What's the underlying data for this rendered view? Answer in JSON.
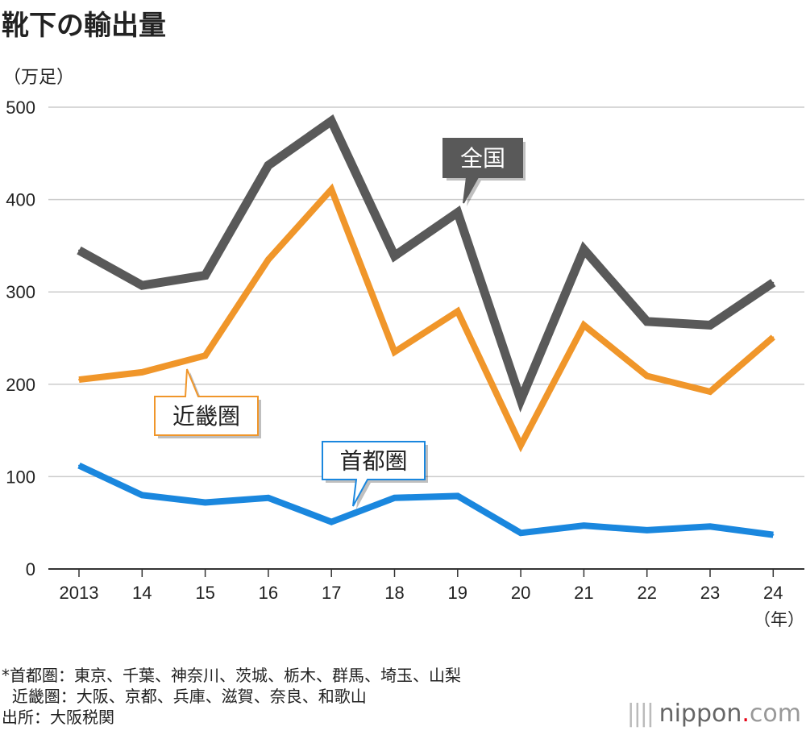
{
  "title": "靴下の輸出量",
  "unit": "（万足）",
  "chart_data": {
    "type": "line",
    "title": "靴下の輸出量",
    "ylabel": "（万足）",
    "xlabel": "（年）",
    "categories": [
      "2013",
      "14",
      "15",
      "16",
      "17",
      "18",
      "19",
      "20",
      "21",
      "22",
      "23",
      "24"
    ],
    "ylim": [
      0,
      500
    ],
    "yticks": [
      0,
      100,
      200,
      300,
      400,
      500
    ],
    "grid": true,
    "series": [
      {
        "name": "全国",
        "color": "#595959",
        "values": [
          345,
          307,
          318,
          437,
          485,
          339,
          386,
          183,
          346,
          268,
          264,
          310
        ]
      },
      {
        "name": "近畿圏",
        "color": "#f0962a",
        "values": [
          205,
          213,
          231,
          335,
          411,
          235,
          279,
          134,
          264,
          209,
          192,
          251
        ]
      },
      {
        "name": "首都圏",
        "color": "#1a87de",
        "values": [
          112,
          80,
          72,
          77,
          51,
          77,
          79,
          39,
          47,
          42,
          46,
          37
        ]
      }
    ]
  },
  "footnotes": [
    "*首都圏：東京、千葉、神奈川、茨城、栃木、群馬、埼玉、山梨",
    "  近畿圏：大阪、京都、兵庫、滋賀、奈良、和歌山",
    "出所：大阪税関"
  ],
  "logo": {
    "main": "nippon",
    "dot": ".",
    "suffix": "com"
  }
}
